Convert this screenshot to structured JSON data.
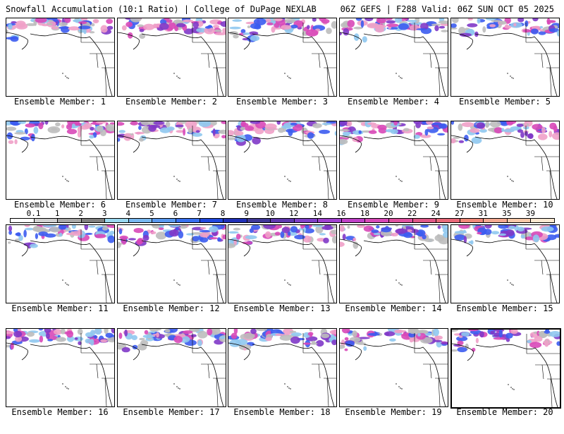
{
  "header": {
    "title": "Snowfall Accumulation (10:1 Ratio) | College of DuPage NEXLAB",
    "run_info": "06Z GEFS | F288 Valid: 06Z SUN OCT 05 2025"
  },
  "panels": [
    {
      "label": "Ensemble Member: 1"
    },
    {
      "label": "Ensemble Member: 2"
    },
    {
      "label": "Ensemble Member: 3"
    },
    {
      "label": "Ensemble Member: 4"
    },
    {
      "label": "Ensemble Member: 5"
    },
    {
      "label": "Ensemble Member: 6"
    },
    {
      "label": "Ensemble Member: 7"
    },
    {
      "label": "Ensemble Member: 8"
    },
    {
      "label": "Ensemble Member: 9"
    },
    {
      "label": "Ensemble Member: 10"
    },
    {
      "label": "Ensemble Member: 11"
    },
    {
      "label": "Ensemble Member: 12"
    },
    {
      "label": "Ensemble Member: 13"
    },
    {
      "label": "Ensemble Member: 14"
    },
    {
      "label": "Ensemble Member: 15"
    },
    {
      "label": "Ensemble Member: 16"
    },
    {
      "label": "Ensemble Member: 17"
    },
    {
      "label": "Ensemble Member: 18"
    },
    {
      "label": "Ensemble Member: 19"
    },
    {
      "label": "Ensemble Member: 20"
    }
  ],
  "legend": {
    "ticks": [
      "0.1",
      "1",
      "2",
      "3",
      "4",
      "5",
      "6",
      "7",
      "8",
      "9",
      "10",
      "12",
      "14",
      "16",
      "18",
      "20",
      "22",
      "24",
      "27",
      "31",
      "35",
      "39"
    ],
    "colors": [
      "#ffffff",
      "#d0d0d0",
      "#a8a8a8",
      "#808080",
      "#9ad8f0",
      "#78b8f0",
      "#5898f0",
      "#3870f0",
      "#2048e0",
      "#2030b8",
      "#403898",
      "#6038b0",
      "#8040c8",
      "#a040d0",
      "#c040c8",
      "#d848b8",
      "#e050a0",
      "#e05888",
      "#e86878",
      "#f08878",
      "#f4a890",
      "#f8c8a8",
      "#fce8d0"
    ]
  },
  "colors": {
    "snow_gray": "#bdbdbd",
    "snow_light_blue": "#8fc8f0",
    "snow_blue": "#3c5cf0",
    "snow_purple": "#8038c8",
    "snow_magenta": "#d848b8",
    "snow_pink": "#f0a0c8"
  }
}
